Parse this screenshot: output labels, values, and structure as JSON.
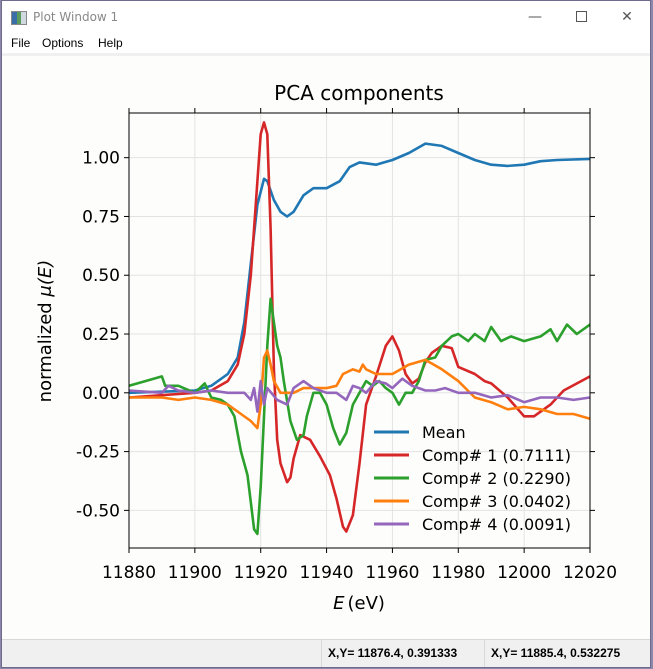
{
  "window": {
    "title": "Plot Window 1",
    "minimize_icon": "minimize-icon",
    "maximize_icon": "maximize-icon",
    "close_icon": "close-icon"
  },
  "menu": [
    "File",
    "Options",
    "Help"
  ],
  "status": {
    "cursor1": "X,Y= 11876.4, 0.391333",
    "cursor2": "X,Y= 11885.4, 0.532275"
  },
  "chart_data": {
    "type": "line",
    "title": "PCA components",
    "xlabel_italic": "E",
    "xlabel_unit": "(eV)",
    "ylabel_prefix": "normalized ",
    "ylabel_symbol": "μ(E)",
    "xlim": [
      11880,
      12020
    ],
    "ylim": [
      -0.66,
      1.19
    ],
    "xticks": [
      11880,
      11900,
      11920,
      11940,
      11960,
      11980,
      12000,
      12020
    ],
    "xtick_labels": [
      "11880",
      "11900",
      "11920",
      "11940",
      "11960",
      "11980",
      "12000",
      "12020"
    ],
    "yticks": [
      -0.5,
      -0.25,
      0,
      0.25,
      0.5,
      0.75,
      1.0
    ],
    "ytick_labels": [
      "-0.50",
      "-0.25",
      "0.00",
      "0.25",
      "0.50",
      "0.75",
      "1.00"
    ],
    "grid": true,
    "legend_position": "lower-right",
    "series": [
      {
        "name": "Mean",
        "color": "#1f77b4",
        "points": [
          [
            11880,
            0.0
          ],
          [
            11900,
            0.01
          ],
          [
            11905,
            0.03
          ],
          [
            11910,
            0.08
          ],
          [
            11913,
            0.15
          ],
          [
            11915,
            0.3
          ],
          [
            11917,
            0.55
          ],
          [
            11919,
            0.8
          ],
          [
            11921,
            0.91
          ],
          [
            11922,
            0.9
          ],
          [
            11924,
            0.82
          ],
          [
            11926,
            0.77
          ],
          [
            11928,
            0.75
          ],
          [
            11930,
            0.77
          ],
          [
            11933,
            0.84
          ],
          [
            11936,
            0.87
          ],
          [
            11940,
            0.87
          ],
          [
            11944,
            0.9
          ],
          [
            11947,
            0.96
          ],
          [
            11950,
            0.98
          ],
          [
            11955,
            0.97
          ],
          [
            11960,
            0.99
          ],
          [
            11965,
            1.02
          ],
          [
            11970,
            1.06
          ],
          [
            11975,
            1.05
          ],
          [
            11980,
            1.02
          ],
          [
            11985,
            0.99
          ],
          [
            11990,
            0.97
          ],
          [
            11995,
            0.965
          ],
          [
            12000,
            0.97
          ],
          [
            12005,
            0.985
          ],
          [
            12010,
            0.99
          ],
          [
            12020,
            0.995
          ]
        ]
      },
      {
        "name": "Comp# 1 (0.7111)",
        "color": "#d62728",
        "points": [
          [
            11880,
            -0.02
          ],
          [
            11900,
            0.0
          ],
          [
            11905,
            0.01
          ],
          [
            11910,
            0.05
          ],
          [
            11913,
            0.12
          ],
          [
            11915,
            0.25
          ],
          [
            11917,
            0.5
          ],
          [
            11919,
            0.9
          ],
          [
            11920,
            1.1
          ],
          [
            11921,
            1.15
          ],
          [
            11922,
            1.1
          ],
          [
            11923,
            0.7
          ],
          [
            11924,
            0.1
          ],
          [
            11925,
            -0.2
          ],
          [
            11926,
            -0.3
          ],
          [
            11928,
            -0.38
          ],
          [
            11929,
            -0.36
          ],
          [
            11930,
            -0.28
          ],
          [
            11932,
            -0.18
          ],
          [
            11935,
            -0.2
          ],
          [
            11938,
            -0.27
          ],
          [
            11941,
            -0.35
          ],
          [
            11943,
            -0.45
          ],
          [
            11945,
            -0.57
          ],
          [
            11946,
            -0.59
          ],
          [
            11948,
            -0.52
          ],
          [
            11950,
            -0.3
          ],
          [
            11952,
            -0.05
          ],
          [
            11955,
            0.07
          ],
          [
            11958,
            0.2
          ],
          [
            11960,
            0.24
          ],
          [
            11962,
            0.18
          ],
          [
            11964,
            0.08
          ],
          [
            11966,
            0.04
          ],
          [
            11968,
            0.06
          ],
          [
            11970,
            0.13
          ],
          [
            11972,
            0.17
          ],
          [
            11975,
            0.2
          ],
          [
            11978,
            0.19
          ],
          [
            11980,
            0.11
          ],
          [
            11985,
            0.08
          ],
          [
            11988,
            0.05
          ],
          [
            11990,
            0.04
          ],
          [
            11995,
            -0.02
          ],
          [
            12000,
            -0.1
          ],
          [
            12003,
            -0.1
          ],
          [
            12008,
            -0.05
          ],
          [
            12012,
            0.01
          ],
          [
            12020,
            0.07
          ]
        ]
      },
      {
        "name": "Comp# 2 (0.2290)",
        "color": "#2ca02c",
        "points": [
          [
            11880,
            0.03
          ],
          [
            11890,
            0.07
          ],
          [
            11891,
            0.03
          ],
          [
            11895,
            0.03
          ],
          [
            11900,
            0.0
          ],
          [
            11903,
            0.04
          ],
          [
            11905,
            -0.02
          ],
          [
            11908,
            -0.03
          ],
          [
            11910,
            -0.05
          ],
          [
            11912,
            -0.1
          ],
          [
            11914,
            -0.25
          ],
          [
            11916,
            -0.35
          ],
          [
            11918,
            -0.58
          ],
          [
            11919,
            -0.6
          ],
          [
            11920,
            -0.4
          ],
          [
            11921,
            -0.1
          ],
          [
            11922,
            0.2
          ],
          [
            11923,
            0.4
          ],
          [
            11924,
            0.3
          ],
          [
            11925,
            0.2
          ],
          [
            11926,
            0.15
          ],
          [
            11927,
            0.05
          ],
          [
            11929,
            -0.12
          ],
          [
            11931,
            -0.2
          ],
          [
            11933,
            -0.18
          ],
          [
            11934,
            -0.1
          ],
          [
            11936,
            0.0
          ],
          [
            11938,
            0.0
          ],
          [
            11940,
            -0.05
          ],
          [
            11942,
            -0.15
          ],
          [
            11944,
            -0.22
          ],
          [
            11946,
            -0.17
          ],
          [
            11948,
            -0.05
          ],
          [
            11950,
            0.0
          ],
          [
            11952,
            0.05
          ],
          [
            11954,
            0.03
          ],
          [
            11956,
            0.05
          ],
          [
            11958,
            0.02
          ],
          [
            11960,
            0.0
          ],
          [
            11962,
            -0.05
          ],
          [
            11964,
            0.0
          ],
          [
            11966,
            0.0
          ],
          [
            11968,
            0.05
          ],
          [
            11970,
            0.14
          ],
          [
            11973,
            0.15
          ],
          [
            11975,
            0.2
          ],
          [
            11978,
            0.24
          ],
          [
            11980,
            0.25
          ],
          [
            11983,
            0.22
          ],
          [
            11985,
            0.25
          ],
          [
            11988,
            0.22
          ],
          [
            11990,
            0.28
          ],
          [
            11993,
            0.22
          ],
          [
            11996,
            0.24
          ],
          [
            12000,
            0.22
          ],
          [
            12005,
            0.24
          ],
          [
            12008,
            0.27
          ],
          [
            12010,
            0.22
          ],
          [
            12013,
            0.29
          ],
          [
            12016,
            0.25
          ],
          [
            12020,
            0.29
          ]
        ]
      },
      {
        "name": "Comp# 3 (0.0402)",
        "color": "#ff7f0e",
        "points": [
          [
            11880,
            -0.02
          ],
          [
            11890,
            -0.02
          ],
          [
            11895,
            -0.03
          ],
          [
            11900,
            -0.02
          ],
          [
            11905,
            -0.03
          ],
          [
            11910,
            -0.05
          ],
          [
            11914,
            -0.09
          ],
          [
            11917,
            -0.12
          ],
          [
            11919,
            -0.15
          ],
          [
            11920,
            -0.05
          ],
          [
            11921,
            0.15
          ],
          [
            11922,
            0.18
          ],
          [
            11923,
            0.12
          ],
          [
            11924,
            0.05
          ],
          [
            11926,
            0.0
          ],
          [
            11928,
            0.0
          ],
          [
            11930,
            0.0
          ],
          [
            11933,
            0.02
          ],
          [
            11936,
            0.02
          ],
          [
            11940,
            0.02
          ],
          [
            11943,
            0.03
          ],
          [
            11945,
            0.08
          ],
          [
            11948,
            0.1
          ],
          [
            11950,
            0.09
          ],
          [
            11951,
            0.12
          ],
          [
            11952,
            0.1
          ],
          [
            11955,
            0.08
          ],
          [
            11960,
            0.08
          ],
          [
            11965,
            0.12
          ],
          [
            11970,
            0.14
          ],
          [
            11975,
            0.1
          ],
          [
            11980,
            0.05
          ],
          [
            11985,
            -0.02
          ],
          [
            11990,
            -0.04
          ],
          [
            11995,
            -0.07
          ],
          [
            12000,
            -0.06
          ],
          [
            12005,
            -0.07
          ],
          [
            12010,
            -0.09
          ],
          [
            12015,
            -0.09
          ],
          [
            12020,
            -0.11
          ]
        ]
      },
      {
        "name": "Comp# 4 (0.0091)",
        "color": "#9467bd",
        "points": [
          [
            11880,
            0.01
          ],
          [
            11890,
            0.0
          ],
          [
            11892,
            0.03
          ],
          [
            11895,
            0.01
          ],
          [
            11900,
            0.0
          ],
          [
            11905,
            0.01
          ],
          [
            11910,
            0.0
          ],
          [
            11915,
            0.0
          ],
          [
            11917,
            -0.03
          ],
          [
            11918,
            0.02
          ],
          [
            11919,
            -0.08
          ],
          [
            11920,
            0.05
          ],
          [
            11921,
            -0.05
          ],
          [
            11922,
            0.02
          ],
          [
            11925,
            -0.03
          ],
          [
            11928,
            -0.05
          ],
          [
            11930,
            0.02
          ],
          [
            11933,
            0.05
          ],
          [
            11936,
            0.02
          ],
          [
            11940,
            0.0
          ],
          [
            11943,
            0.0
          ],
          [
            11946,
            -0.03
          ],
          [
            11948,
            0.03
          ],
          [
            11950,
            0.02
          ],
          [
            11952,
            0.0
          ],
          [
            11955,
            0.05
          ],
          [
            11958,
            0.04
          ],
          [
            11960,
            0.02
          ],
          [
            11963,
            0.06
          ],
          [
            11966,
            0.03
          ],
          [
            11970,
            0.01
          ],
          [
            11973,
            0.01
          ],
          [
            11976,
            0.02
          ],
          [
            11980,
            0.0
          ],
          [
            11985,
            0.0
          ],
          [
            11990,
            -0.02
          ],
          [
            11995,
            -0.01
          ],
          [
            12000,
            -0.04
          ],
          [
            12005,
            -0.02
          ],
          [
            12010,
            -0.02
          ],
          [
            12015,
            -0.03
          ],
          [
            12020,
            -0.02
          ]
        ]
      }
    ]
  }
}
